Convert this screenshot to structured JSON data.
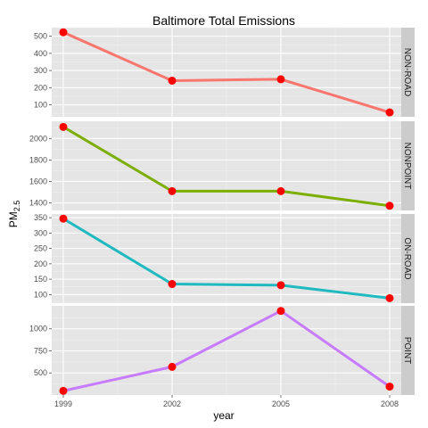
{
  "chart_data": {
    "type": "line",
    "title": "Baltimore Total Emissions",
    "xlabel": "year",
    "ylabel": "PM",
    "ylabel_subscript": "2.5",
    "x": [
      "1999",
      "2002",
      "2005",
      "2008"
    ],
    "point_color": "#ff0000",
    "layout": "facets stacked vertically, facet labels on right strip",
    "panels": [
      {
        "name": "NON-ROAD",
        "color": "#f8766d",
        "values": [
          522.9,
          240.8,
          248.9,
          55.8
        ],
        "ylim": [
          30,
          550
        ],
        "yticks": [
          100,
          200,
          300,
          400,
          500
        ]
      },
      {
        "name": "NONPOINT",
        "color": "#7cae00",
        "values": [
          2107.6,
          1509.5,
          1509.5,
          1373.2
        ],
        "ylim": [
          1330,
          2160
        ],
        "yticks": [
          1400,
          1600,
          1800,
          2000
        ]
      },
      {
        "name": "ON-ROAD",
        "color": "#1fb9c0",
        "values": [
          346.8,
          134.3,
          130.4,
          88.3
        ],
        "ylim": [
          72,
          362
        ],
        "yticks": [
          100,
          150,
          200,
          250,
          300,
          350
        ]
      },
      {
        "name": "POINT",
        "color": "#c77cff",
        "values": [
          296.8,
          569.3,
          1202.5,
          344.98
        ],
        "ylim": [
          250,
          1260
        ],
        "yticks": [
          500,
          750,
          1000
        ]
      }
    ]
  }
}
